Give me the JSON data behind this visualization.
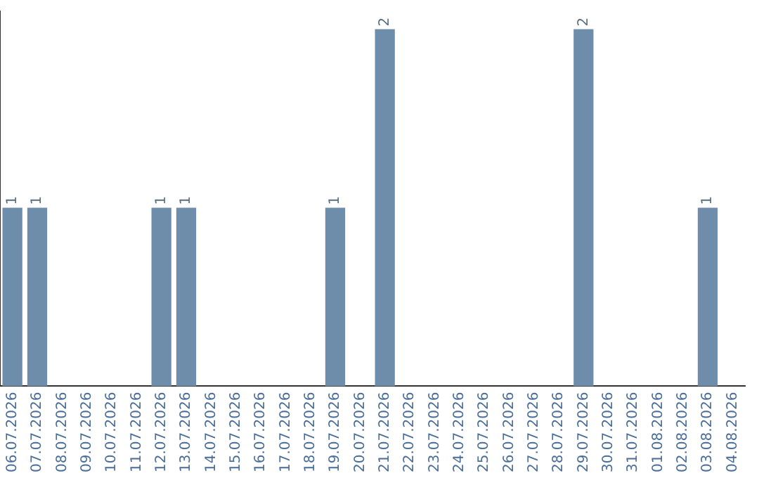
{
  "chart_data": {
    "type": "bar",
    "categories": [
      "06.07.2026",
      "07.07.2026",
      "08.07.2026",
      "09.07.2026",
      "10.07.2026",
      "11.07.2026",
      "12.07.2026",
      "13.07.2026",
      "14.07.2026",
      "15.07.2026",
      "16.07.2026",
      "17.07.2026",
      "18.07.2026",
      "19.07.2026",
      "20.07.2026",
      "21.07.2026",
      "22.07.2026",
      "23.07.2026",
      "24.07.2026",
      "25.07.2026",
      "26.07.2026",
      "27.07.2026",
      "28.07.2026",
      "29.07.2026",
      "30.07.2026",
      "31.07.2026",
      "01.08.2026",
      "02.08.2026",
      "03.08.2026",
      "04.08.2026"
    ],
    "values": [
      1,
      1,
      0,
      0,
      0,
      0,
      1,
      1,
      0,
      0,
      0,
      0,
      0,
      1,
      0,
      2,
      0,
      0,
      0,
      0,
      0,
      0,
      0,
      2,
      0,
      0,
      0,
      0,
      1,
      0
    ],
    "value_labels": [
      "1",
      "1",
      null,
      null,
      null,
      null,
      "1",
      "1",
      null,
      null,
      null,
      null,
      null,
      "1",
      null,
      "2",
      null,
      null,
      null,
      null,
      null,
      null,
      null,
      "2",
      null,
      null,
      null,
      null,
      "1",
      null
    ],
    "color": "#6e8daa",
    "ylim": [
      0,
      2.1
    ],
    "grid": false,
    "legend": false,
    "tick_labels": "x"
  }
}
